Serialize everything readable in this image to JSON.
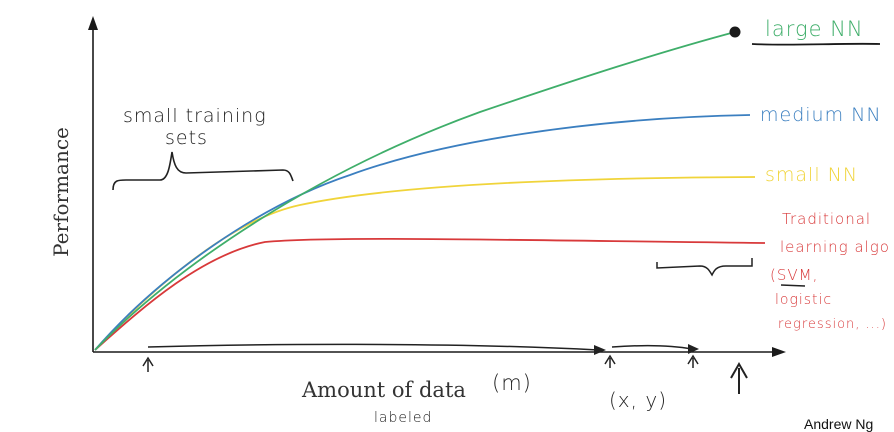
{
  "axes": {
    "ylabel": "Performance",
    "xlabel": "Amount of data",
    "x_unit_note": "(m)",
    "x_sub_note": "labeled"
  },
  "chart_data": {
    "type": "line",
    "ylabel": "Performance",
    "xlabel": "Amount of data",
    "series": [
      {
        "name": "large NN",
        "color": "#3fae6a",
        "trend": "keeps rising"
      },
      {
        "name": "medium NN",
        "color": "#3b7fc0",
        "trend": "rises then levels"
      },
      {
        "name": "small NN",
        "color": "#f0d43a",
        "trend": "levels earlier"
      },
      {
        "name": "Traditional learning algorithm (SVM, logistic regression, ...)",
        "color": "#d8393a",
        "trend": "plateaus early"
      }
    ]
  },
  "annotations": {
    "small_sets": [
      "small training",
      "sets"
    ],
    "large_nn": "large NN",
    "medium_nn": "medium NN",
    "small_nn": "small NN",
    "traditional": [
      "Traditional",
      "learning algo",
      "(SVM,",
      "logistic",
      "regression, ...)"
    ],
    "xy": "(x, y)",
    "credit": "Andrew Ng"
  },
  "colors": {
    "axis": "#1a1a1a",
    "ink": "#222222",
    "large": "#3fae6a",
    "medium": "#3b7fc0",
    "small": "#f0d43a",
    "traditional": "#d8393a"
  }
}
